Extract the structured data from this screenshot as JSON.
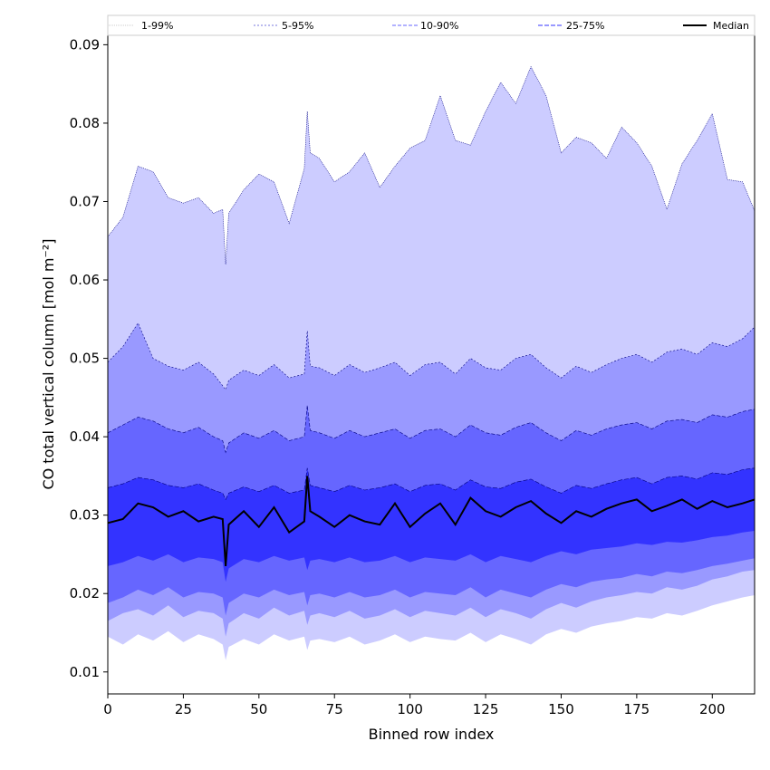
{
  "chart_data": {
    "type": "area",
    "xlabel": "Binned row index",
    "ylabel": "CO total vertical column [mol m⁻²]",
    "xlim": [
      0,
      214
    ],
    "ylim": [
      0.0072,
      0.0912
    ],
    "x_ticks": [
      0,
      25,
      50,
      75,
      100,
      125,
      150,
      175,
      200
    ],
    "y_ticks": [
      0.01,
      0.02,
      0.03,
      0.04,
      0.05,
      0.06,
      0.07,
      0.08,
      0.09
    ],
    "x_tick_labels": [
      "0",
      "25",
      "50",
      "75",
      "100",
      "125",
      "150",
      "175",
      "200"
    ],
    "y_tick_labels": [
      "0.01",
      "0.02",
      "0.03",
      "0.04",
      "0.05",
      "0.06",
      "0.07",
      "0.08",
      "0.09"
    ],
    "grid": false,
    "legend_position": "top",
    "x": [
      0,
      5,
      10,
      15,
      20,
      25,
      30,
      35,
      38,
      39,
      40,
      45,
      50,
      55,
      60,
      65,
      66,
      67,
      70,
      75,
      80,
      85,
      90,
      95,
      100,
      105,
      110,
      115,
      120,
      125,
      130,
      135,
      140,
      145,
      150,
      155,
      160,
      165,
      170,
      175,
      180,
      185,
      190,
      195,
      200,
      205,
      210,
      214
    ],
    "series": [
      {
        "name": "1-99%",
        "lower": [
          0.0145,
          0.0135,
          0.0148,
          0.014,
          0.0152,
          0.0138,
          0.0148,
          0.0142,
          0.0135,
          0.0115,
          0.0132,
          0.0142,
          0.0135,
          0.0148,
          0.014,
          0.0145,
          0.0128,
          0.014,
          0.0142,
          0.0138,
          0.0145,
          0.0135,
          0.014,
          0.0148,
          0.0138,
          0.0145,
          0.0142,
          0.014,
          0.015,
          0.0138,
          0.0148,
          0.0142,
          0.0135,
          0.0148,
          0.0155,
          0.015,
          0.0158,
          0.0162,
          0.0165,
          0.017,
          0.0168,
          0.0175,
          0.0172,
          0.0178,
          0.0185,
          0.019,
          0.0195,
          0.0198
        ],
        "upper": [
          0.0655,
          0.068,
          0.0745,
          0.0738,
          0.0705,
          0.0698,
          0.0705,
          0.0685,
          0.069,
          0.062,
          0.0685,
          0.0715,
          0.0735,
          0.0725,
          0.0672,
          0.0742,
          0.0815,
          0.0762,
          0.0755,
          0.0725,
          0.0738,
          0.0762,
          0.0718,
          0.0745,
          0.0768,
          0.0778,
          0.0835,
          0.0778,
          0.0772,
          0.0815,
          0.0852,
          0.0825,
          0.0872,
          0.0835,
          0.0762,
          0.0782,
          0.0775,
          0.0755,
          0.0795,
          0.0775,
          0.0745,
          0.069,
          0.0748,
          0.0778,
          0.0812,
          0.0728,
          0.0725,
          0.0688
        ]
      },
      {
        "name": "5-95%",
        "lower": [
          0.0165,
          0.0175,
          0.018,
          0.0172,
          0.0185,
          0.017,
          0.0178,
          0.0175,
          0.0168,
          0.0145,
          0.0162,
          0.0175,
          0.0168,
          0.0182,
          0.0172,
          0.0178,
          0.016,
          0.0172,
          0.0175,
          0.017,
          0.0178,
          0.0168,
          0.0172,
          0.018,
          0.017,
          0.0178,
          0.0175,
          0.0172,
          0.0182,
          0.017,
          0.018,
          0.0175,
          0.0168,
          0.018,
          0.0188,
          0.0182,
          0.019,
          0.0195,
          0.0198,
          0.0202,
          0.02,
          0.0208,
          0.0205,
          0.021,
          0.0218,
          0.0222,
          0.0228,
          0.023
        ],
        "upper": [
          0.0495,
          0.0515,
          0.0545,
          0.05,
          0.049,
          0.0485,
          0.0495,
          0.048,
          0.0465,
          0.046,
          0.0472,
          0.0485,
          0.0478,
          0.0492,
          0.0475,
          0.048,
          0.0535,
          0.049,
          0.0488,
          0.0478,
          0.0492,
          0.0482,
          0.0488,
          0.0495,
          0.0478,
          0.0492,
          0.0495,
          0.048,
          0.05,
          0.0488,
          0.0485,
          0.05,
          0.0505,
          0.0488,
          0.0475,
          0.049,
          0.0482,
          0.0492,
          0.05,
          0.0505,
          0.0495,
          0.0508,
          0.0512,
          0.0505,
          0.052,
          0.0515,
          0.0525,
          0.054
        ]
      },
      {
        "name": "10-90%",
        "lower": [
          0.0188,
          0.0195,
          0.0205,
          0.0198,
          0.0208,
          0.0195,
          0.0202,
          0.02,
          0.0195,
          0.0172,
          0.0188,
          0.02,
          0.0195,
          0.0205,
          0.0198,
          0.0202,
          0.0185,
          0.0198,
          0.02,
          0.0195,
          0.0202,
          0.0195,
          0.0198,
          0.0205,
          0.0195,
          0.0202,
          0.02,
          0.0198,
          0.0208,
          0.0195,
          0.0205,
          0.02,
          0.0195,
          0.0205,
          0.0212,
          0.0208,
          0.0215,
          0.0218,
          0.022,
          0.0225,
          0.0222,
          0.0228,
          0.0226,
          0.023,
          0.0235,
          0.0238,
          0.0242,
          0.0245
        ],
        "upper": [
          0.0405,
          0.0415,
          0.0425,
          0.042,
          0.041,
          0.0405,
          0.0412,
          0.04,
          0.0395,
          0.038,
          0.0392,
          0.0405,
          0.0398,
          0.0408,
          0.0395,
          0.04,
          0.044,
          0.0408,
          0.0405,
          0.0398,
          0.0408,
          0.04,
          0.0405,
          0.041,
          0.0398,
          0.0408,
          0.041,
          0.04,
          0.0415,
          0.0405,
          0.0402,
          0.0412,
          0.0418,
          0.0405,
          0.0395,
          0.0408,
          0.0402,
          0.041,
          0.0415,
          0.0418,
          0.041,
          0.042,
          0.0422,
          0.0418,
          0.0428,
          0.0425,
          0.0432,
          0.0435
        ]
      },
      {
        "name": "25-75%",
        "lower": [
          0.0235,
          0.024,
          0.0248,
          0.0242,
          0.025,
          0.024,
          0.0246,
          0.0244,
          0.024,
          0.0215,
          0.0232,
          0.0244,
          0.024,
          0.0248,
          0.0242,
          0.0246,
          0.023,
          0.0242,
          0.0244,
          0.024,
          0.0246,
          0.024,
          0.0242,
          0.0248,
          0.024,
          0.0246,
          0.0244,
          0.0242,
          0.025,
          0.024,
          0.0248,
          0.0244,
          0.024,
          0.0248,
          0.0254,
          0.025,
          0.0256,
          0.0258,
          0.026,
          0.0264,
          0.0262,
          0.0266,
          0.0265,
          0.0268,
          0.0272,
          0.0274,
          0.0278,
          0.028
        ],
        "upper": [
          0.0335,
          0.034,
          0.0348,
          0.0345,
          0.0338,
          0.0335,
          0.034,
          0.0332,
          0.0328,
          0.032,
          0.0328,
          0.0336,
          0.033,
          0.0338,
          0.0328,
          0.0332,
          0.036,
          0.0338,
          0.0335,
          0.033,
          0.0338,
          0.0332,
          0.0335,
          0.034,
          0.033,
          0.0338,
          0.034,
          0.0332,
          0.0345,
          0.0336,
          0.0334,
          0.0342,
          0.0346,
          0.0336,
          0.0328,
          0.0338,
          0.0334,
          0.034,
          0.0345,
          0.0348,
          0.034,
          0.0348,
          0.035,
          0.0346,
          0.0354,
          0.0352,
          0.0358,
          0.036
        ]
      },
      {
        "name": "Median",
        "values": [
          0.029,
          0.0295,
          0.0315,
          0.031,
          0.0298,
          0.0305,
          0.0292,
          0.0298,
          0.0295,
          0.0235,
          0.0288,
          0.0305,
          0.0285,
          0.031,
          0.0278,
          0.0292,
          0.035,
          0.0305,
          0.0298,
          0.0285,
          0.03,
          0.0292,
          0.0288,
          0.0315,
          0.0285,
          0.0302,
          0.0315,
          0.0288,
          0.0322,
          0.0305,
          0.0298,
          0.031,
          0.0318,
          0.0302,
          0.029,
          0.0305,
          0.0298,
          0.0308,
          0.0315,
          0.032,
          0.0305,
          0.0312,
          0.032,
          0.0308,
          0.0318,
          0.031,
          0.0315,
          0.032
        ]
      }
    ],
    "colors": {
      "band_1_99": "#ccccff",
      "band_5_95": "#9999ff",
      "band_10_90": "#6666ff",
      "band_25_75": "#3333ff",
      "edge": "#000080",
      "median": "#000000"
    }
  }
}
